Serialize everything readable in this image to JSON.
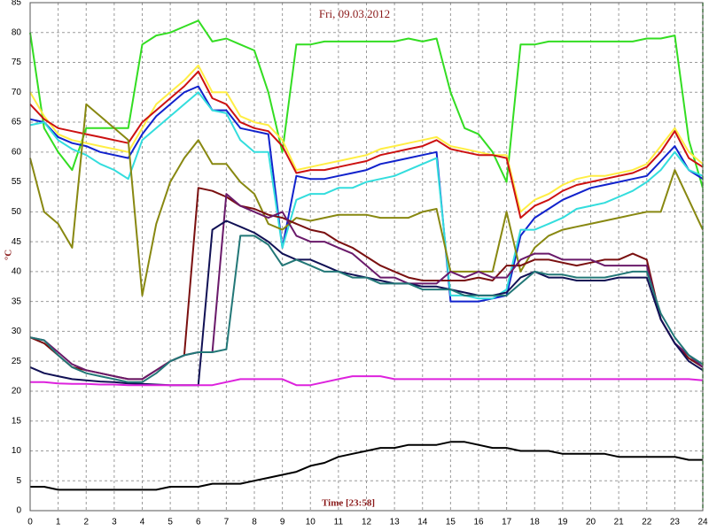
{
  "chart_data": {
    "type": "line",
    "title": "Fri, 09.03.2012",
    "xlabel": "Time [23:58]",
    "ylabel": "°C",
    "xlim": [
      0,
      24
    ],
    "ylim": [
      0,
      85
    ],
    "xticks": [
      0,
      1,
      2,
      3,
      4,
      5,
      6,
      7,
      8,
      9,
      10,
      11,
      12,
      13,
      14,
      15,
      16,
      17,
      18,
      19,
      20,
      21,
      22,
      23,
      24
    ],
    "yticks": [
      0,
      5,
      10,
      15,
      20,
      25,
      30,
      35,
      40,
      45,
      50,
      55,
      60,
      65,
      70,
      75,
      80,
      85
    ],
    "grid": true,
    "x": [
      0,
      0.5,
      1,
      1.5,
      2,
      2.5,
      3,
      3.5,
      4,
      4.5,
      5,
      5.5,
      6,
      6.5,
      7,
      7.5,
      8,
      8.5,
      9,
      9.5,
      10,
      10.5,
      11,
      11.5,
      12,
      12.5,
      13,
      13.5,
      14,
      14.5,
      15,
      15.5,
      16,
      16.5,
      17,
      17.5,
      18,
      18.5,
      19,
      19.5,
      20,
      20.5,
      21,
      21.5,
      22,
      22.5,
      23,
      23.5,
      24
    ],
    "series": [
      {
        "color": "#33dd22",
        "values": [
          80,
          64,
          60,
          57,
          64,
          64,
          64,
          64,
          78,
          79.5,
          80,
          81,
          82,
          78.5,
          79,
          78,
          77,
          70,
          60,
          78,
          78,
          78.5,
          78.5,
          78.5,
          78.5,
          78.5,
          78.5,
          79,
          78.5,
          79,
          70,
          64,
          63,
          60,
          55,
          78,
          78,
          78.5,
          78.5,
          78.5,
          78.5,
          78.5,
          78.5,
          78.5,
          79,
          79,
          79.5,
          62,
          54
        ]
      },
      {
        "color": "#ffee44",
        "values": [
          70,
          66,
          63,
          62,
          61.5,
          61,
          60.5,
          60,
          64,
          68,
          70,
          72,
          74.5,
          70,
          70,
          66,
          65,
          64.5,
          62,
          57,
          57.5,
          58,
          58.5,
          59,
          59.5,
          60.5,
          61,
          61.5,
          62,
          62.5,
          61,
          60.5,
          60,
          59.5,
          59.5,
          50,
          52,
          53,
          54.5,
          55.5,
          56,
          56,
          56.5,
          57,
          58,
          61,
          64,
          60,
          58
        ]
      },
      {
        "color": "#cc1111",
        "values": [
          68,
          65.5,
          64,
          63.5,
          63,
          62.5,
          62,
          61.5,
          65,
          67,
          69,
          71,
          73.5,
          69,
          68,
          65,
          64,
          63.5,
          61,
          56.5,
          57,
          57,
          57.5,
          58,
          58.5,
          59.5,
          60,
          60.5,
          61,
          62,
          60.5,
          60,
          59.5,
          59.5,
          59,
          49,
          51,
          52,
          53.5,
          54.5,
          55,
          55.5,
          56,
          56.5,
          57.5,
          60,
          63.5,
          59,
          57.5
        ]
      },
      {
        "color": "#1122cc",
        "values": [
          65.5,
          65,
          62.5,
          61.5,
          61,
          60,
          59.5,
          59,
          63,
          66,
          68,
          70,
          71,
          67,
          67,
          64,
          63.5,
          63,
          44,
          56,
          55.5,
          55.5,
          56,
          56.5,
          57,
          58,
          58.5,
          59,
          59.5,
          60,
          35,
          35,
          35,
          35.5,
          36,
          46,
          49,
          50.5,
          52,
          53,
          54,
          54.5,
          55,
          55.5,
          56,
          58.5,
          61,
          57,
          55.5
        ]
      },
      {
        "color": "#33dddd",
        "values": [
          64.5,
          65,
          62,
          60.5,
          59.5,
          58,
          57,
          55.5,
          62,
          64,
          66,
          68,
          70,
          67,
          66.5,
          62,
          60,
          60,
          44,
          52,
          53,
          53,
          54,
          54,
          55,
          55.5,
          56,
          57,
          58,
          59,
          36,
          36,
          35.5,
          35.5,
          37,
          47,
          47,
          48,
          49,
          50.5,
          51,
          51.5,
          52.5,
          53.5,
          55,
          57,
          60,
          57,
          56
        ]
      },
      {
        "color": "#888811",
        "values": [
          59,
          50,
          48,
          44,
          68,
          66,
          64,
          62,
          36,
          48,
          55,
          59,
          62,
          58,
          58,
          55,
          53,
          48,
          47,
          49,
          48.5,
          49,
          49.5,
          49.5,
          49.5,
          49,
          49,
          49,
          50,
          50.5,
          40,
          40,
          40,
          40,
          50,
          40,
          44,
          46,
          47,
          47.5,
          48,
          48.5,
          49,
          49.5,
          50,
          50,
          57,
          52,
          47
        ]
      },
      {
        "color": "#7a1010",
        "values": [
          29,
          28,
          26,
          24,
          23.5,
          23,
          22.5,
          22,
          22,
          23.5,
          25,
          26,
          54,
          53.5,
          52.5,
          51,
          50.5,
          49.5,
          49,
          48,
          47,
          46.5,
          45,
          44,
          42.5,
          41,
          40,
          39,
          38.5,
          38.5,
          38.5,
          38.5,
          39,
          38.5,
          41,
          41,
          42,
          42,
          41.5,
          41,
          41.5,
          42,
          42,
          43,
          42,
          32,
          28,
          25.5,
          24
        ]
      },
      {
        "color": "#6a1a6a",
        "values": [
          29,
          28.5,
          26.5,
          24.5,
          23.5,
          23,
          22.5,
          22,
          22,
          23.5,
          25,
          26,
          26.5,
          26.5,
          53,
          51,
          50,
          49,
          50,
          46,
          45,
          45,
          44,
          43,
          41,
          39,
          39,
          38,
          38,
          38,
          40,
          39,
          40,
          39,
          39,
          42,
          43,
          43,
          42,
          42,
          42,
          41,
          41,
          41,
          41,
          32,
          28,
          26,
          24
        ]
      },
      {
        "color": "#111155",
        "values": [
          24,
          23,
          22.5,
          22,
          21.8,
          21.6,
          21.5,
          21.3,
          21.2,
          21.1,
          21,
          21,
          21,
          47,
          48.5,
          47.5,
          46.5,
          45,
          43,
          42,
          42,
          41,
          40,
          39.5,
          39,
          38.5,
          38,
          38,
          37.5,
          37.5,
          37,
          36.5,
          36,
          36,
          36.5,
          39,
          40,
          39,
          39,
          38.5,
          38.5,
          38.5,
          39,
          39,
          39,
          32,
          28,
          25,
          23.5
        ]
      },
      {
        "color": "#227777",
        "values": [
          29,
          28.5,
          26,
          24,
          23,
          22.5,
          22,
          21.5,
          21.5,
          23,
          25,
          26,
          26.5,
          26.5,
          27,
          46,
          46,
          44.5,
          41,
          42,
          41,
          40,
          40,
          39,
          39,
          38,
          38,
          38,
          37,
          37,
          37,
          36,
          36,
          36,
          36,
          38,
          40,
          39.5,
          39.5,
          39,
          39,
          39,
          39.5,
          40,
          40,
          33,
          29,
          26,
          24.5
        ]
      },
      {
        "color": "#dd22dd",
        "values": [
          21.5,
          21.5,
          21.3,
          21.2,
          21.2,
          21.1,
          21.1,
          21,
          21,
          21,
          21,
          21,
          21,
          21,
          21.5,
          22,
          22,
          22,
          22,
          21,
          21,
          21.5,
          22,
          22.5,
          22.5,
          22.5,
          22,
          22,
          22,
          22,
          22,
          22,
          22,
          22,
          22,
          22,
          22,
          22,
          22,
          22,
          22,
          22,
          22,
          22,
          22,
          22,
          22,
          22,
          21.8
        ]
      },
      {
        "color": "#000000",
        "values": [
          4,
          4,
          3.5,
          3.5,
          3.5,
          3.5,
          3.5,
          3.5,
          3.5,
          3.5,
          4,
          4,
          4,
          4.5,
          4.5,
          4.5,
          5,
          5.5,
          6,
          6.5,
          7.5,
          8,
          9,
          9.5,
          10,
          10.5,
          10.5,
          11,
          11,
          11,
          11.5,
          11.5,
          11,
          10.5,
          10.5,
          10,
          10,
          10,
          9.5,
          9.5,
          9.5,
          9.5,
          9,
          9,
          9,
          9,
          9,
          8.5,
          8.5
        ]
      }
    ]
  }
}
